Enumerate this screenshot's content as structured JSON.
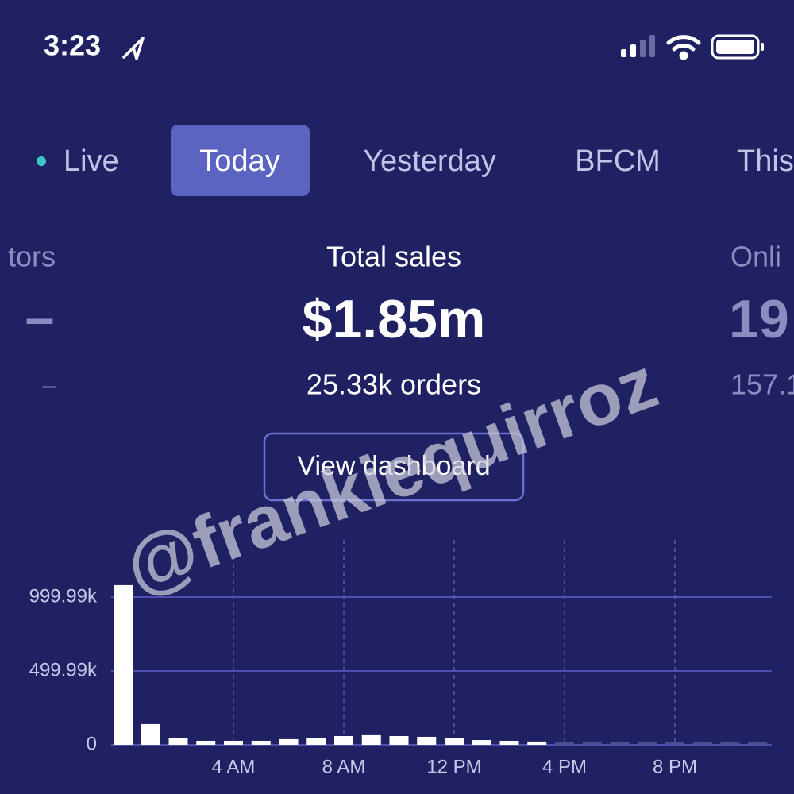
{
  "status_bar": {
    "time": "3:23"
  },
  "tabs": [
    "Live",
    "Today",
    "Yesterday",
    "BFCM",
    "This"
  ],
  "metrics": [
    {
      "label": "tors",
      "value": "–",
      "sub": "–"
    },
    {
      "label": "Total sales",
      "value": "$1.85m",
      "sub": "25.33k orders"
    },
    {
      "label": "Onli",
      "value": "19",
      "sub": "157.1"
    }
  ],
  "button": "View dashboard",
  "watermark": "@frankiequirroz",
  "chart_data": {
    "type": "bar",
    "categories": [
      null,
      null,
      null,
      null,
      "4 AM",
      null,
      null,
      null,
      "8 AM",
      null,
      null,
      null,
      "12 PM",
      null,
      null,
      null,
      "4 PM",
      null,
      null,
      null,
      "8 PM",
      null,
      null,
      null
    ],
    "values": [
      1081,
      140,
      43,
      27,
      27,
      27,
      38,
      48,
      59,
      65,
      59,
      54,
      43,
      32,
      27,
      22,
      null,
      null,
      null,
      null,
      null,
      null,
      null,
      null
    ],
    "color": "#ffffff",
    "ylim": [
      0,
      1387
    ],
    "yticks": [
      0,
      {
        "value": 499.99,
        "label": "499.99k"
      },
      {
        "value": 999.99,
        "label": "999.99k"
      }
    ],
    "grid": true
  }
}
